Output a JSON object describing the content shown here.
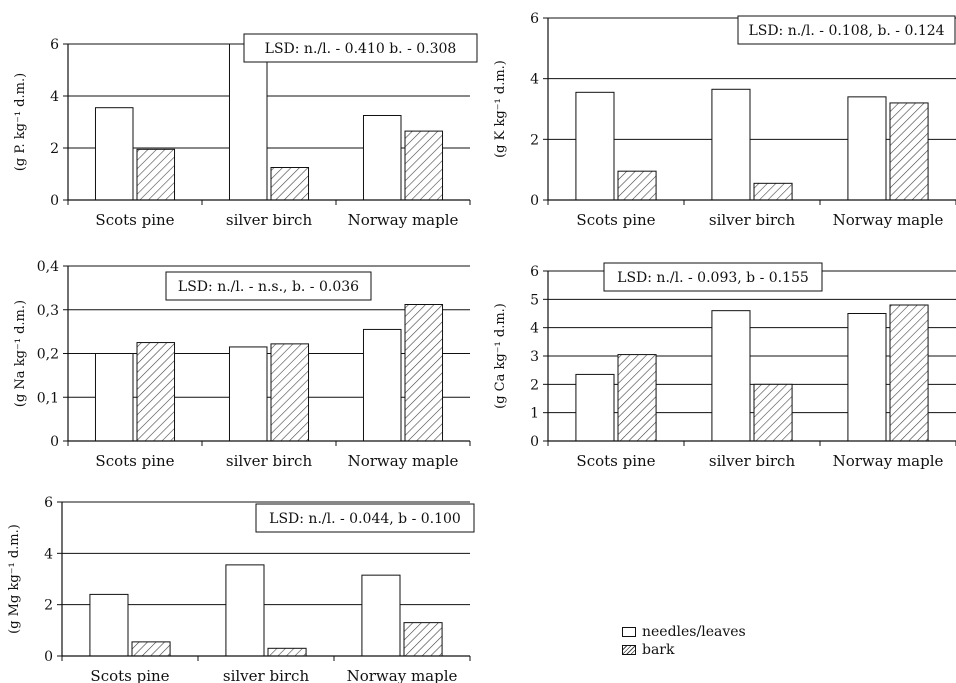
{
  "legend": {
    "needles_label": "needles/leaves",
    "bark_label": "bark"
  },
  "colors": {
    "needles": "#ffffff",
    "bark_hatch": "#444444",
    "axis": "#111111"
  },
  "chart_data": [
    {
      "type": "bar",
      "ylabel": "(g P. kg⁻¹ d.m.)",
      "categories": [
        "Scots pine",
        "silver birch",
        "Norway maple"
      ],
      "ylim": [
        0,
        6
      ],
      "yticks": [
        "0",
        "2",
        "4",
        "6"
      ],
      "ytick_values": [
        0,
        2,
        4,
        6
      ],
      "annotation": "LSD: n./l. - 0.410 b. - 0.308",
      "series": [
        {
          "name": "needles/leaves",
          "values": [
            3.55,
            6.0,
            3.25
          ]
        },
        {
          "name": "bark",
          "values": [
            1.95,
            1.25,
            2.65
          ]
        }
      ]
    },
    {
      "type": "bar",
      "ylabel": "(g K kg⁻¹ d.m.)",
      "categories": [
        "Scots pine",
        "silver birch",
        "Norway maple"
      ],
      "ylim": [
        0,
        6
      ],
      "yticks": [
        "0",
        "2",
        "4",
        "6"
      ],
      "ytick_values": [
        0,
        2,
        4,
        6
      ],
      "annotation": "LSD: n./l. - 0.108, b. - 0.124",
      "series": [
        {
          "name": "needles/leaves",
          "values": [
            3.55,
            3.65,
            3.4
          ]
        },
        {
          "name": "bark",
          "values": [
            0.95,
            0.55,
            3.2
          ]
        }
      ]
    },
    {
      "type": "bar",
      "ylabel": "(g Na kg⁻¹ d.m.)",
      "categories": [
        "Scots pine",
        "silver birch",
        "Norway maple"
      ],
      "ylim": [
        0,
        0.4
      ],
      "yticks": [
        "0",
        "0,1",
        "0,2",
        "0,3",
        "0,4"
      ],
      "ytick_values": [
        0,
        0.1,
        0.2,
        0.3,
        0.4
      ],
      "annotation": "LSD: n./l. - n.s., b. - 0.036",
      "series": [
        {
          "name": "needles/leaves",
          "values": [
            0.2,
            0.215,
            0.255
          ]
        },
        {
          "name": "bark",
          "values": [
            0.225,
            0.222,
            0.312
          ]
        }
      ]
    },
    {
      "type": "bar",
      "ylabel": "(g Ca kg⁻¹ d.m.)",
      "categories": [
        "Scots pine",
        "silver birch",
        "Norway maple"
      ],
      "ylim": [
        0,
        6
      ],
      "yticks": [
        "0",
        "1",
        "2",
        "3",
        "4",
        "5",
        "6"
      ],
      "ytick_values": [
        0,
        1,
        2,
        3,
        4,
        5,
        6
      ],
      "annotation": "LSD: n./l. - 0.093, b - 0.155",
      "series": [
        {
          "name": "needles/leaves",
          "values": [
            2.35,
            4.6,
            4.5
          ]
        },
        {
          "name": "bark",
          "values": [
            3.05,
            2.0,
            4.8
          ]
        }
      ]
    },
    {
      "type": "bar",
      "ylabel": "(g Mg kg⁻¹ d.m.)",
      "categories": [
        "Scots pine",
        "silver birch",
        "Norway maple"
      ],
      "ylim": [
        0,
        6
      ],
      "yticks": [
        "0",
        "2",
        "4",
        "6"
      ],
      "ytick_values": [
        0,
        2,
        4,
        6
      ],
      "annotation": "LSD: n./l. - 0.044, b - 0.100",
      "series": [
        {
          "name": "needles/leaves",
          "values": [
            2.4,
            3.55,
            3.15
          ]
        },
        {
          "name": "bark",
          "values": [
            0.55,
            0.3,
            1.3
          ]
        }
      ]
    }
  ]
}
